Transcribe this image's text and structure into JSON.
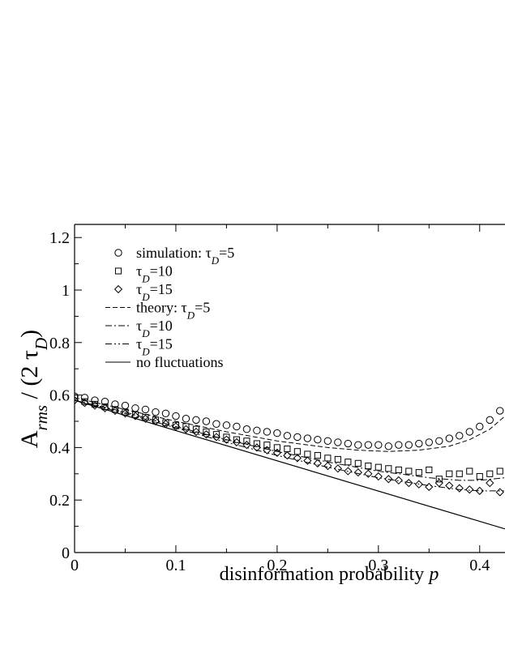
{
  "chart_data": {
    "type": "scatter",
    "xlabel": "disinformation probability p",
    "ylabel": "A_rms / (2 τ_D)",
    "xlim": [
      0,
      0.425
    ],
    "ylim": [
      0,
      1.25
    ],
    "xticks": [
      0,
      0.1,
      0.2,
      0.3,
      0.4
    ],
    "xtick_labels": [
      "0",
      "0.1",
      "0.2",
      "0.3",
      "0.4"
    ],
    "yticks": [
      0,
      0.2,
      0.4,
      0.6,
      0.8,
      1.0,
      1.2
    ],
    "ytick_labels": [
      "0",
      "0.2",
      "0.4",
      "0.6",
      "0.8",
      "1",
      "1.2"
    ],
    "grid": false,
    "legend_position": "upper-left",
    "legend": [
      {
        "label": "simulation: τ_D=5",
        "marker": "circle"
      },
      {
        "label": "τ_D=10",
        "marker": "square"
      },
      {
        "label": "τ_D=15",
        "marker": "diamond"
      },
      {
        "label": "theory: τ_D=5",
        "line": "dashed"
      },
      {
        "label": "τ_D=10",
        "line": "dashdot"
      },
      {
        "label": "τ_D=15",
        "line": "dashdotdot"
      },
      {
        "label": "no fluctuations",
        "line": "solid"
      }
    ],
    "series": [
      {
        "kind": "markers",
        "marker": "circle",
        "x": [
          0,
          0.01,
          0.02,
          0.03,
          0.04,
          0.05,
          0.06,
          0.07,
          0.08,
          0.09,
          0.1,
          0.11,
          0.12,
          0.13,
          0.14,
          0.15,
          0.16,
          0.17,
          0.18,
          0.19,
          0.2,
          0.21,
          0.22,
          0.23,
          0.24,
          0.25,
          0.26,
          0.27,
          0.28,
          0.29,
          0.3,
          0.31,
          0.32,
          0.33,
          0.34,
          0.35,
          0.36,
          0.37,
          0.38,
          0.39,
          0.4,
          0.41,
          0.42
        ],
        "y": [
          0.595,
          0.59,
          0.58,
          0.575,
          0.565,
          0.56,
          0.55,
          0.545,
          0.535,
          0.53,
          0.52,
          0.51,
          0.505,
          0.5,
          0.49,
          0.485,
          0.48,
          0.47,
          0.465,
          0.46,
          0.455,
          0.445,
          0.44,
          0.435,
          0.43,
          0.425,
          0.42,
          0.415,
          0.41,
          0.41,
          0.41,
          0.405,
          0.41,
          0.41,
          0.415,
          0.42,
          0.425,
          0.435,
          0.445,
          0.46,
          0.48,
          0.505,
          0.54
        ]
      },
      {
        "kind": "markers",
        "marker": "square",
        "x": [
          0,
          0.01,
          0.02,
          0.03,
          0.04,
          0.05,
          0.06,
          0.07,
          0.08,
          0.09,
          0.1,
          0.11,
          0.12,
          0.13,
          0.14,
          0.15,
          0.16,
          0.17,
          0.18,
          0.19,
          0.2,
          0.21,
          0.22,
          0.23,
          0.24,
          0.25,
          0.26,
          0.27,
          0.28,
          0.29,
          0.3,
          0.31,
          0.32,
          0.33,
          0.34,
          0.35,
          0.36,
          0.37,
          0.38,
          0.39,
          0.4,
          0.41,
          0.42
        ],
        "y": [
          0.59,
          0.575,
          0.565,
          0.555,
          0.545,
          0.535,
          0.525,
          0.515,
          0.505,
          0.495,
          0.485,
          0.48,
          0.47,
          0.46,
          0.45,
          0.44,
          0.43,
          0.425,
          0.415,
          0.41,
          0.4,
          0.395,
          0.385,
          0.375,
          0.37,
          0.36,
          0.355,
          0.345,
          0.34,
          0.33,
          0.325,
          0.32,
          0.315,
          0.31,
          0.305,
          0.315,
          0.28,
          0.3,
          0.3,
          0.31,
          0.29,
          0.3,
          0.31
        ]
      },
      {
        "kind": "markers",
        "marker": "diamond",
        "x": [
          0,
          0.01,
          0.02,
          0.03,
          0.04,
          0.05,
          0.06,
          0.07,
          0.08,
          0.09,
          0.1,
          0.11,
          0.12,
          0.13,
          0.14,
          0.15,
          0.16,
          0.17,
          0.18,
          0.19,
          0.2,
          0.21,
          0.22,
          0.23,
          0.24,
          0.25,
          0.26,
          0.27,
          0.28,
          0.29,
          0.3,
          0.31,
          0.32,
          0.33,
          0.34,
          0.35,
          0.36,
          0.37,
          0.38,
          0.39,
          0.4,
          0.41,
          0.42
        ],
        "y": [
          0.58,
          0.57,
          0.56,
          0.55,
          0.54,
          0.53,
          0.52,
          0.51,
          0.5,
          0.49,
          0.48,
          0.47,
          0.46,
          0.45,
          0.44,
          0.43,
          0.42,
          0.41,
          0.4,
          0.39,
          0.38,
          0.37,
          0.36,
          0.35,
          0.34,
          0.33,
          0.32,
          0.31,
          0.305,
          0.3,
          0.29,
          0.28,
          0.275,
          0.265,
          0.26,
          0.25,
          0.265,
          0.255,
          0.245,
          0.24,
          0.235,
          0.265,
          0.23
        ]
      },
      {
        "kind": "line",
        "style": "dashed",
        "x": [
          0,
          0.05,
          0.1,
          0.15,
          0.2,
          0.25,
          0.28,
          0.31,
          0.34,
          0.37,
          0.39,
          0.41,
          0.425
        ],
        "y": [
          0.59,
          0.545,
          0.5,
          0.46,
          0.425,
          0.4,
          0.39,
          0.385,
          0.39,
          0.405,
          0.43,
          0.47,
          0.52
        ]
      },
      {
        "kind": "line",
        "style": "dashdot",
        "x": [
          0,
          0.05,
          0.1,
          0.15,
          0.2,
          0.25,
          0.3,
          0.35,
          0.38,
          0.4,
          0.425
        ],
        "y": [
          0.58,
          0.535,
          0.48,
          0.43,
          0.385,
          0.345,
          0.31,
          0.285,
          0.275,
          0.275,
          0.285
        ]
      },
      {
        "kind": "line",
        "style": "dashdotdot",
        "x": [
          0,
          0.05,
          0.1,
          0.15,
          0.2,
          0.25,
          0.3,
          0.35,
          0.38,
          0.4,
          0.425
        ],
        "y": [
          0.58,
          0.53,
          0.475,
          0.42,
          0.37,
          0.325,
          0.285,
          0.255,
          0.24,
          0.235,
          0.235
        ]
      },
      {
        "kind": "line",
        "style": "solid",
        "x": [
          0,
          0.425
        ],
        "y": [
          0.58,
          0.09
        ]
      }
    ]
  }
}
